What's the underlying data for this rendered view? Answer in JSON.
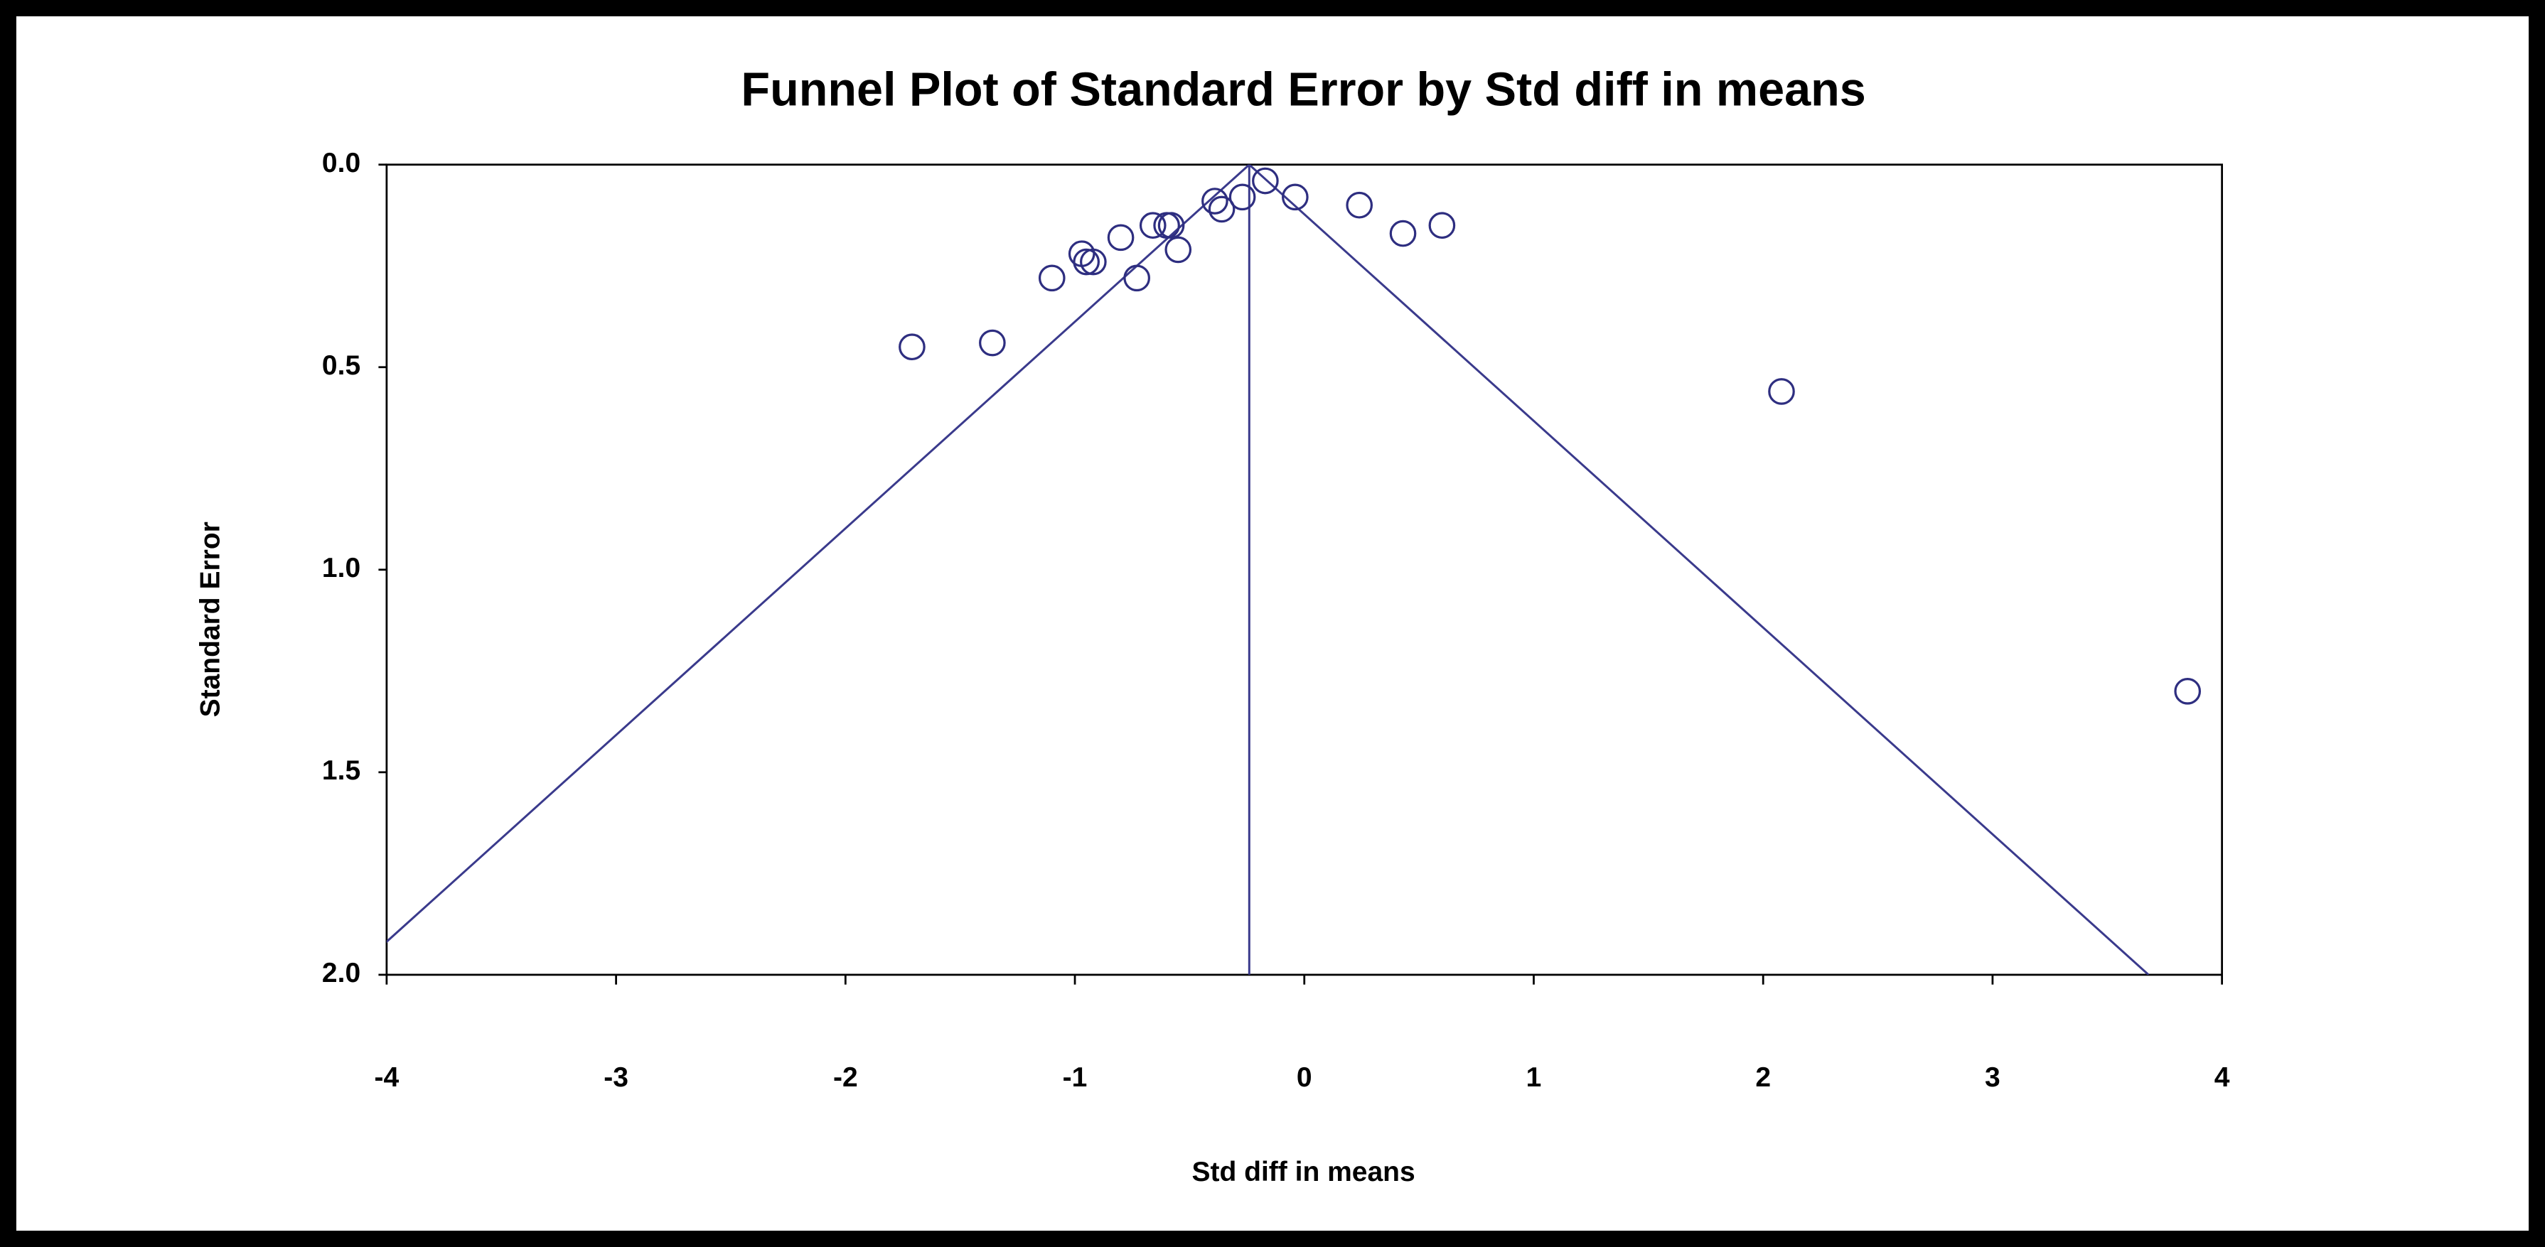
{
  "chart_data": {
    "type": "scatter",
    "title": "Funnel Plot of Standard Error by Std diff in means",
    "x_label": "Std diff in means",
    "y_label": "Standard Error",
    "xlim": [
      -4,
      4
    ],
    "ylim": [
      0,
      2
    ],
    "y_inverted": true,
    "xticks": [
      -4,
      -3,
      -2,
      -1,
      0,
      1,
      2,
      3,
      4
    ],
    "yticks": [
      {
        "value": 0,
        "label": "0.0"
      },
      0.5,
      {
        "value": 1,
        "label": "1.0"
      },
      1.5,
      {
        "value": 2,
        "label": "2.0"
      }
    ],
    "pooled_estimate": -0.24,
    "funnel_z": 1.96,
    "line_color": "#3a3a8c",
    "series": [
      {
        "color": "#2e2e80",
        "x": [
          -1.71,
          -1.36,
          -1.1,
          -0.97,
          -0.95,
          -0.92,
          -0.8,
          -0.73,
          -0.66,
          -0.6,
          -0.58,
          -0.55,
          -0.39,
          -0.36,
          -0.27,
          -0.17,
          -0.04,
          0.24,
          0.43,
          0.6,
          2.08,
          3.85
        ],
        "values": [
          0.45,
          0.44,
          0.28,
          0.22,
          0.24,
          0.24,
          0.18,
          0.28,
          0.15,
          0.15,
          0.15,
          0.21,
          0.09,
          0.11,
          0.08,
          0.04,
          0.08,
          0.1,
          0.17,
          0.15,
          0.56,
          1.3
        ]
      }
    ]
  }
}
